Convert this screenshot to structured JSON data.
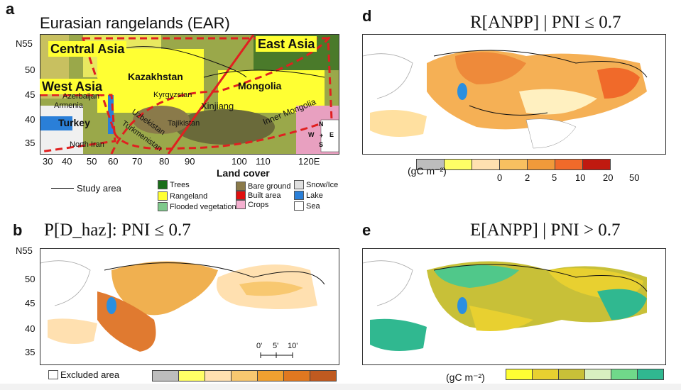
{
  "panel_a": {
    "letter": "a",
    "title": "Eurasian rangelands (EAR)",
    "regions": [
      "Central Asia",
      "East Asia",
      "West Asia"
    ],
    "countries": [
      "Kazakhstan",
      "Mongolia",
      "Turkey"
    ],
    "places": [
      "Azerbaijan",
      "Armenia",
      "Kyrgyzstan",
      "Uzbekistan",
      "Turkmenistan",
      "Tajikistan",
      "Xinjiang",
      "Inner Mongolia",
      "North Iran"
    ],
    "lat_ticks": [
      "N55",
      "50",
      "45",
      "40",
      "35"
    ],
    "lon_ticks": [
      "30",
      "40",
      "50",
      "60",
      "70",
      "80",
      "90",
      "100",
      "110",
      "120E"
    ],
    "compass": {
      "n": "N",
      "s": "S",
      "w": "W",
      "e": "E"
    },
    "legend_title": "Land cover",
    "study_area_label": "Study area",
    "land_cover": [
      {
        "label": "Trees",
        "color": "#1a6e1a"
      },
      {
        "label": "Rangeland",
        "color": "#ffff33"
      },
      {
        "label": "Flooded vegetation",
        "color": "#7fc98c"
      },
      {
        "label": "Bare ground",
        "color": "#8a7a4a"
      },
      {
        "label": "Built area",
        "color": "#e01010"
      },
      {
        "label": "Crops",
        "color": "#f5b0d0"
      },
      {
        "label": "Snow/Ice",
        "color": "#e0e0e0"
      },
      {
        "label": "Lake",
        "color": "#2a7fd8"
      },
      {
        "label": "Sea",
        "color": "#ffffff"
      }
    ]
  },
  "panel_b": {
    "letter": "b",
    "title": "P[D_haz]: PNI ≤ 0.7",
    "lat_ticks": [
      "N55",
      "50",
      "45",
      "40",
      "35"
    ],
    "scale": {
      "a": "0'",
      "b": "5'",
      "c": "10'"
    },
    "excluded_label": "Excluded area",
    "colors": [
      "#bdbdbd",
      "#ffff66",
      "#ffe0b0",
      "#f8c870",
      "#f0a030",
      "#e07820",
      "#c05a20"
    ]
  },
  "panel_d": {
    "letter": "d",
    "title": "R[ANPP] | PNI ≤ 0.7",
    "unit": "(gC m⁻²)",
    "ticks": [
      "0",
      "2",
      "5",
      "10",
      "20",
      "50"
    ],
    "colors": [
      "#bdbdbd",
      "#ffff66",
      "#ffe0b0",
      "#f8c060",
      "#f09a3a",
      "#f06a2a",
      "#c01a10"
    ]
  },
  "panel_e": {
    "letter": "e",
    "title": "E[ANPP] | PNI > 0.7",
    "unit": "(gC m⁻²)",
    "colors": [
      "#ffff33",
      "#e8d030",
      "#c8c038",
      "#d8f0c0",
      "#70d88a",
      "#30b890"
    ]
  }
}
